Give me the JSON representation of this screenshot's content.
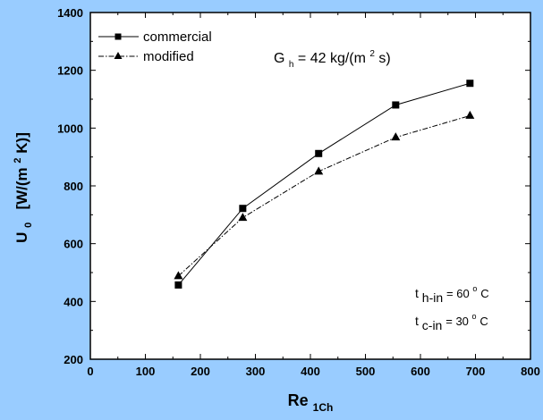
{
  "chart_data": {
    "type": "line",
    "background": "#99ccff",
    "plot_background": "#ffffff",
    "xlim": [
      0,
      800
    ],
    "ylim": [
      200,
      1400
    ],
    "xticks": [
      0,
      100,
      200,
      300,
      400,
      500,
      600,
      700,
      800
    ],
    "yticks": [
      200,
      400,
      600,
      800,
      1000,
      1200,
      1400
    ],
    "xlabel": {
      "main": "Re",
      "sub": "1Ch"
    },
    "ylabel": {
      "pre": "U",
      "sub": "0",
      "mid": "  [W/(m",
      "sup": "2",
      "post": "K)]"
    },
    "legend_position": "top-left",
    "series": [
      {
        "name": "commercial",
        "marker": "square",
        "line_style": "solid",
        "color": "#000000",
        "x": [
          160,
          277,
          415,
          555,
          690
        ],
        "y": [
          457,
          722,
          912,
          1080,
          1155
        ]
      },
      {
        "name": "modified",
        "marker": "triangle",
        "line_style": "dash-dot",
        "color": "#000000",
        "x": [
          160,
          277,
          415,
          555,
          690
        ],
        "y": [
          488,
          690,
          850,
          968,
          1043
        ]
      }
    ],
    "annotations": {
      "gh": {
        "pre": "G",
        "sub": "h",
        "mid": " = 42 kg/(m",
        "sup": "2",
        "post": "s)"
      },
      "th": {
        "pre": "t",
        "sub": "h-in",
        "mid": " = 60 ",
        "sup": "o",
        "post": "C"
      },
      "tc": {
        "pre": "t",
        "sub": "c-in",
        "mid": " = 30 ",
        "sup": "o",
        "post": "C"
      }
    }
  }
}
